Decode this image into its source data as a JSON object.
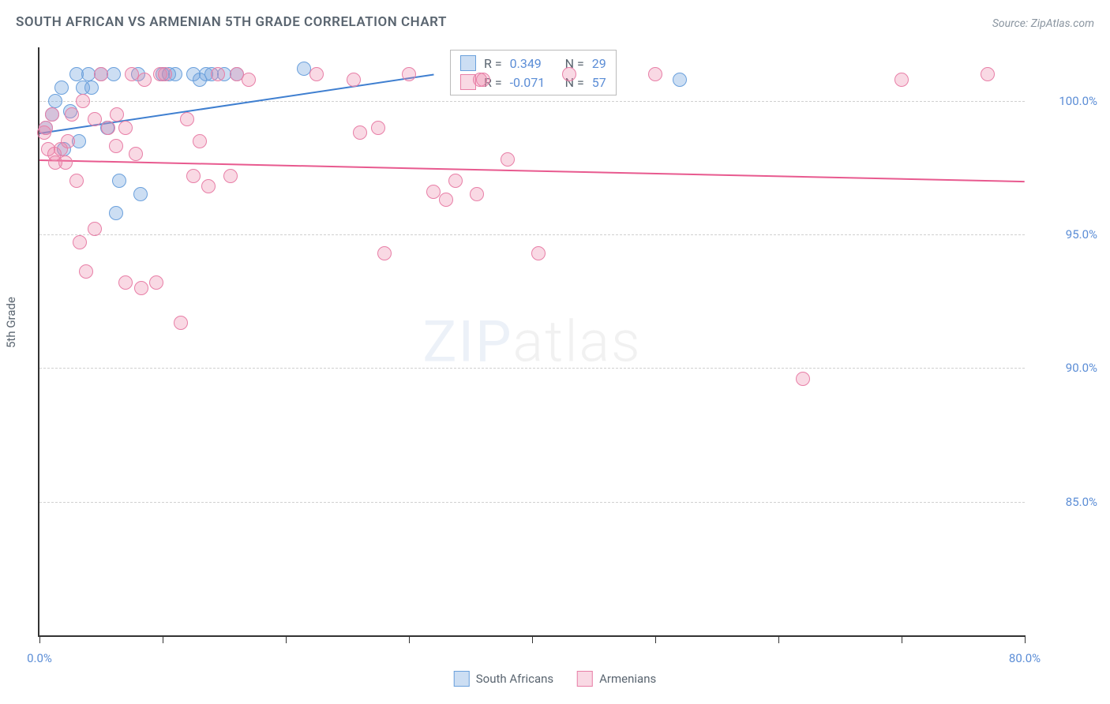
{
  "title": "SOUTH AFRICAN VS ARMENIAN 5TH GRADE CORRELATION CHART",
  "source": "Source: ZipAtlas.com",
  "ylabel": "5th Grade",
  "watermark_bold": "ZIP",
  "watermark_light": "atlas",
  "chart": {
    "type": "scatter",
    "xlim": [
      0,
      80
    ],
    "ylim": [
      80,
      102
    ],
    "x_ticks": [
      0,
      10,
      20,
      30,
      40,
      50,
      60,
      70,
      80
    ],
    "x_tick_labels": {
      "0": "0.0%",
      "80": "80.0%"
    },
    "y_ticks": [
      85,
      90,
      95,
      100
    ],
    "y_tick_labels": {
      "85": "85.0%",
      "90": "90.0%",
      "95": "95.0%",
      "100": "100.0%"
    },
    "background_color": "#ffffff",
    "grid_color": "#d0d0d0",
    "marker_radius": 9,
    "marker_border": 1.5,
    "series": [
      {
        "name": "South Africans",
        "fill_color": "rgba(110,160,220,0.35)",
        "border_color": "#6aa0dc",
        "line_color": "#3f7fd0",
        "R": "0.349",
        "N": "29",
        "points": [
          [
            0.5,
            99.0
          ],
          [
            1.0,
            99.5
          ],
          [
            1.3,
            100.0
          ],
          [
            1.8,
            100.5
          ],
          [
            2.0,
            98.2
          ],
          [
            2.5,
            99.6
          ],
          [
            3.0,
            101.0
          ],
          [
            3.2,
            98.5
          ],
          [
            3.5,
            100.5
          ],
          [
            4.0,
            101.0
          ],
          [
            4.2,
            100.5
          ],
          [
            5.0,
            101.0
          ],
          [
            5.5,
            99.0
          ],
          [
            6.0,
            101.0
          ],
          [
            6.2,
            95.8
          ],
          [
            6.5,
            97.0
          ],
          [
            8.0,
            101.0
          ],
          [
            8.2,
            96.5
          ],
          [
            10.0,
            101.0
          ],
          [
            10.5,
            101.0
          ],
          [
            11.0,
            101.0
          ],
          [
            12.5,
            101.0
          ],
          [
            13.0,
            100.8
          ],
          [
            13.5,
            101.0
          ],
          [
            14.0,
            101.0
          ],
          [
            15.0,
            101.0
          ],
          [
            16.0,
            101.0
          ],
          [
            21.5,
            101.2
          ],
          [
            52.0,
            100.8
          ]
        ],
        "trend": {
          "x1": 0,
          "y1": 98.8,
          "x2": 32,
          "y2": 101.0
        }
      },
      {
        "name": "Armenians",
        "fill_color": "rgba(235,130,165,0.30)",
        "border_color": "#e87fa7",
        "line_color": "#e85a8f",
        "R": "-0.071",
        "N": "57",
        "points": [
          [
            0.4,
            98.8
          ],
          [
            0.5,
            99.0
          ],
          [
            0.7,
            98.2
          ],
          [
            1.0,
            99.5
          ],
          [
            1.2,
            98.0
          ],
          [
            1.3,
            97.7
          ],
          [
            1.7,
            98.2
          ],
          [
            2.1,
            97.7
          ],
          [
            2.3,
            98.5
          ],
          [
            2.6,
            99.5
          ],
          [
            3.0,
            97.0
          ],
          [
            3.3,
            94.7
          ],
          [
            3.5,
            100.0
          ],
          [
            3.8,
            93.6
          ],
          [
            4.5,
            99.3
          ],
          [
            4.5,
            95.2
          ],
          [
            5.0,
            101.0
          ],
          [
            5.6,
            99.0
          ],
          [
            6.2,
            98.3
          ],
          [
            6.3,
            99.5
          ],
          [
            7.0,
            93.2
          ],
          [
            7.0,
            99.0
          ],
          [
            7.5,
            101.0
          ],
          [
            7.8,
            98.0
          ],
          [
            8.3,
            93.0
          ],
          [
            8.5,
            100.8
          ],
          [
            9.5,
            93.2
          ],
          [
            9.8,
            101.0
          ],
          [
            10.2,
            101.0
          ],
          [
            11.5,
            91.7
          ],
          [
            12.0,
            99.3
          ],
          [
            12.5,
            97.2
          ],
          [
            13.0,
            98.5
          ],
          [
            13.7,
            96.8
          ],
          [
            14.5,
            101.0
          ],
          [
            15.5,
            97.2
          ],
          [
            16.0,
            101.0
          ],
          [
            17.0,
            100.8
          ],
          [
            22.5,
            101.0
          ],
          [
            25.5,
            100.8
          ],
          [
            26.0,
            98.8
          ],
          [
            27.5,
            99.0
          ],
          [
            28.0,
            94.3
          ],
          [
            30.0,
            101.0
          ],
          [
            32.0,
            96.6
          ],
          [
            33.0,
            96.3
          ],
          [
            33.8,
            97.0
          ],
          [
            35.5,
            96.5
          ],
          [
            35.8,
            100.8
          ],
          [
            36.0,
            100.8
          ],
          [
            38.0,
            97.8
          ],
          [
            40.5,
            94.3
          ],
          [
            43.0,
            101.0
          ],
          [
            50.0,
            101.0
          ],
          [
            62.0,
            89.6
          ],
          [
            70.0,
            100.8
          ],
          [
            77.0,
            101.0
          ]
        ],
        "trend": {
          "x1": 0,
          "y1": 97.8,
          "x2": 80,
          "y2": 97.0
        }
      }
    ],
    "stats_labels": {
      "R": "R",
      "equals": "=",
      "N": "N"
    }
  },
  "bottom_legend": [
    "South Africans",
    "Armenians"
  ]
}
